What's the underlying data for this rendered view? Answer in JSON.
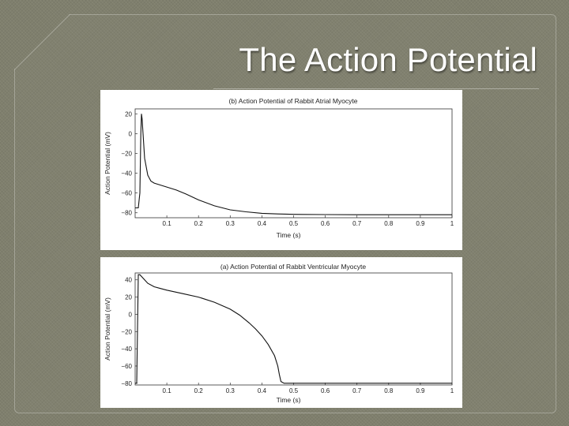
{
  "slide": {
    "title": "The Action Potential"
  },
  "chart_data": [
    {
      "type": "line",
      "title": "(b) Action Potential of Rabbit Atrial Myocyte",
      "xlabel": "Time (s)",
      "ylabel": "Action Potential (mV)",
      "xlim": [
        0,
        1
      ],
      "ylim": [
        -85,
        25
      ],
      "x_ticks": [
        0.1,
        0.2,
        0.3,
        0.4,
        0.5,
        0.6,
        0.7,
        0.8,
        0.9,
        1
      ],
      "x_tick_labels": [
        "0.1",
        "0.2",
        "0.3",
        "0.4",
        "0.5",
        "0.6",
        "0.7",
        "0.8",
        "0.9",
        "1"
      ],
      "y_ticks": [
        20,
        0,
        -20,
        -40,
        -60,
        -80
      ],
      "y_tick_labels": [
        "20",
        "0",
        "−20",
        "−40",
        "−60",
        "−80"
      ],
      "grid": false,
      "series": [
        {
          "x": [
            0.0,
            0.01,
            0.015,
            0.018,
            0.02,
            0.022,
            0.025,
            0.03,
            0.04,
            0.05,
            0.06,
            0.08,
            0.1,
            0.13,
            0.16,
            0.2,
            0.25,
            0.3,
            0.35,
            0.4,
            0.45,
            0.5,
            0.6,
            0.7,
            0.8,
            0.9,
            1.0
          ],
          "y": [
            -75,
            -75,
            -60,
            0,
            20,
            15,
            0,
            -25,
            -42,
            -48,
            -50,
            -52,
            -54,
            -57,
            -61,
            -67,
            -73,
            -77,
            -79,
            -80.5,
            -81.2,
            -81.6,
            -81.8,
            -82,
            -82,
            -82,
            -82
          ]
        }
      ]
    },
    {
      "type": "line",
      "title": "(a) Action Potential of Rabbit Ventricular Myocyte",
      "xlabel": "Time (s)",
      "ylabel": "Action Potential (mV)",
      "xlim": [
        0,
        1
      ],
      "ylim": [
        -82,
        48
      ],
      "x_ticks": [
        0.1,
        0.2,
        0.3,
        0.4,
        0.5,
        0.6,
        0.7,
        0.8,
        0.9,
        1
      ],
      "x_tick_labels": [
        "0.1",
        "0.2",
        "0.3",
        "0.4",
        "0.5",
        "0.6",
        "0.7",
        "0.8",
        "0.9",
        "1"
      ],
      "y_ticks": [
        40,
        20,
        0,
        -20,
        -40,
        -60,
        -80
      ],
      "y_tick_labels": [
        "40",
        "20",
        "0",
        "−20",
        "−40",
        "−60",
        "−80"
      ],
      "grid": false,
      "series": [
        {
          "x": [
            0.0,
            0.005,
            0.01,
            0.015,
            0.02,
            0.03,
            0.04,
            0.06,
            0.08,
            0.1,
            0.15,
            0.2,
            0.25,
            0.3,
            0.33,
            0.36,
            0.38,
            0.4,
            0.42,
            0.44,
            0.45,
            0.455,
            0.46,
            0.47,
            0.5,
            0.6,
            0.7,
            0.8,
            0.9,
            1.0
          ],
          "y": [
            -80,
            -80,
            46,
            46,
            44,
            40,
            36,
            32,
            30,
            28,
            24,
            20,
            14,
            6,
            -1,
            -10,
            -17,
            -25,
            -35,
            -48,
            -60,
            -70,
            -78,
            -80,
            -80,
            -80,
            -80,
            -80,
            -80,
            -80
          ]
        }
      ]
    }
  ]
}
